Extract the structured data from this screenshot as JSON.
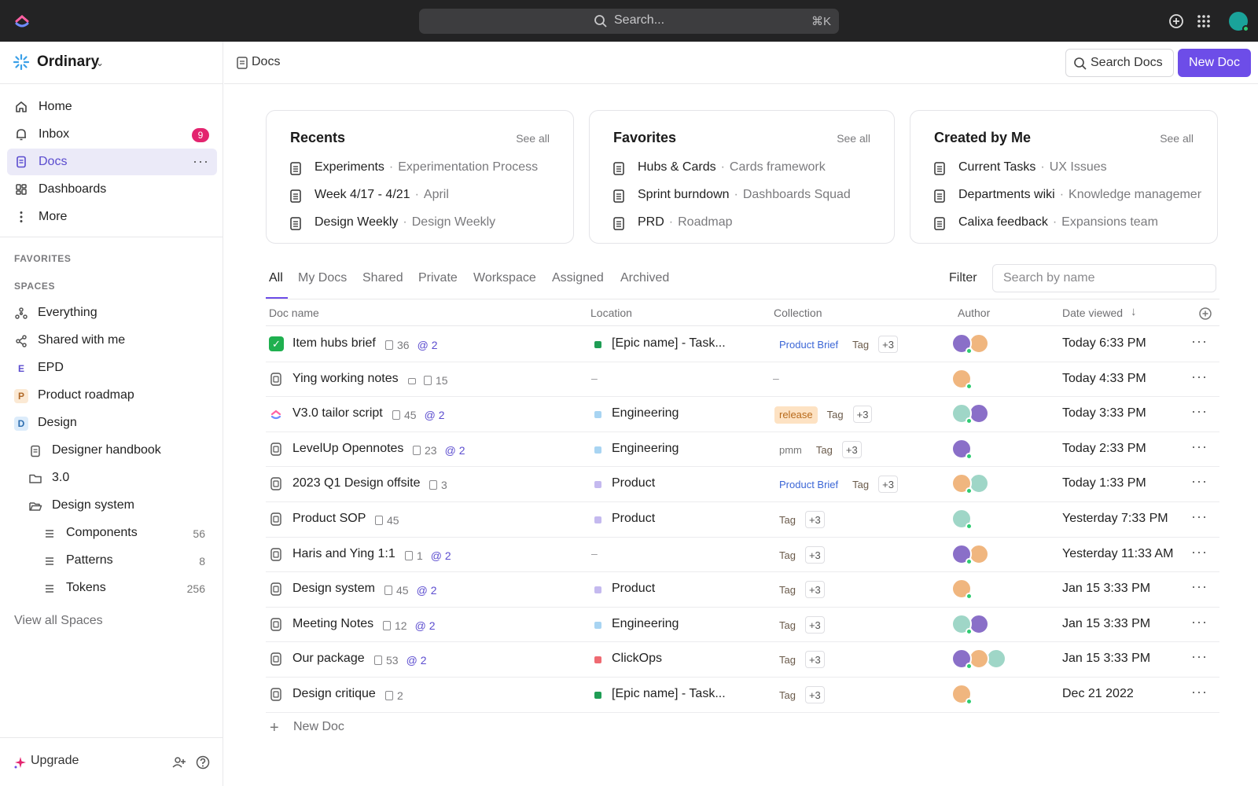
{
  "topbar": {
    "search_placeholder": "Search...",
    "search_shortcut": "⌘K",
    "icons": [
      "clickup-logo-icon",
      "plus-circle-icon",
      "apps-grid-icon",
      "user-avatar"
    ]
  },
  "sidebar": {
    "workspace_name": "Ordinary",
    "nav": [
      {
        "label": "Home",
        "icon": "home-icon"
      },
      {
        "label": "Inbox",
        "icon": "bell-icon",
        "badge": "9"
      },
      {
        "label": "Docs",
        "icon": "docs-icon",
        "active": true
      },
      {
        "label": "Dashboards",
        "icon": "dashboard-icon"
      },
      {
        "label": "More",
        "icon": "more-vertical-icon"
      }
    ],
    "favorites_heading": "FAVORITES",
    "spaces_heading": "SPACES",
    "spaces": [
      {
        "label": "Everything",
        "icon": "everything-icon"
      },
      {
        "label": "Shared with me",
        "icon": "share-icon"
      },
      {
        "label": "EPD",
        "letter": "E"
      },
      {
        "label": "Product roadmap",
        "letter": "P"
      },
      {
        "label": "Design",
        "letter": "D"
      },
      {
        "label": "Designer handbook",
        "icon": "doc-icon"
      },
      {
        "label": "3.0",
        "icon": "folder-icon"
      },
      {
        "label": "Design system",
        "icon": "folder-open-icon"
      },
      {
        "label": "Components",
        "icon": "list-icon",
        "count": "56"
      },
      {
        "label": "Patterns",
        "icon": "list-icon",
        "count": "8"
      },
      {
        "label": "Tokens",
        "icon": "list-icon",
        "count": "256"
      }
    ],
    "view_all": "View all Spaces",
    "upgrade": "Upgrade"
  },
  "header": {
    "breadcrumb": "Docs",
    "search_docs": "Search Docs",
    "new_doc": "New Doc"
  },
  "cards": [
    {
      "title": "Recents",
      "see_all": "See all",
      "items": [
        {
          "name": "Experiments",
          "sub": "Experimentation Process"
        },
        {
          "name": "Week 4/17 - 4/21",
          "sub": "April"
        },
        {
          "name": "Design Weekly",
          "sub": "Design Weekly"
        }
      ]
    },
    {
      "title": "Favorites",
      "see_all": "See all",
      "items": [
        {
          "name": "Hubs & Cards",
          "sub": "Cards framework"
        },
        {
          "name": "Sprint burndown",
          "sub": "Dashboards Squad"
        },
        {
          "name": "PRD",
          "sub": "Roadmap"
        }
      ]
    },
    {
      "title": "Created by Me",
      "see_all": "See all",
      "items": [
        {
          "name": "Current Tasks",
          "sub": "UX Issues"
        },
        {
          "name": "Departments wiki",
          "sub": "Knowledge managemen"
        },
        {
          "name": "Calixa feedback",
          "sub": "Expansions team"
        }
      ]
    }
  ],
  "tabs": [
    "All",
    "My Docs",
    "Shared",
    "Private",
    "Workspace",
    "Assigned",
    "Archived"
  ],
  "filter_label": "Filter",
  "name_search_placeholder": "Search by name",
  "table": {
    "columns": [
      "Doc name",
      "Location",
      "Collection",
      "Author",
      "Date viewed"
    ],
    "rows": [
      {
        "name": "Item hubs brief",
        "pages": "36",
        "shared": "2",
        "location": "[Epic name] - Task...",
        "loc_color": "#1f9d55",
        "collection": [
          {
            "t": "Product Brief",
            "k": "brief"
          },
          {
            "t": "Tag",
            "k": "tag"
          },
          {
            "t": "+3",
            "k": "plus"
          }
        ],
        "date": "Today 6:33 PM",
        "check": true,
        "authors": 2
      },
      {
        "name": "Ying working notes",
        "pages": "15",
        "locked": true,
        "location": "",
        "collection": [],
        "date": "Today 4:33 PM",
        "authors": 1
      },
      {
        "name": "V3.0 tailor script",
        "pages": "45",
        "shared": "2",
        "location": "Engineering",
        "loc_color": "#a8d4f2",
        "collection": [
          {
            "t": "release",
            "k": "release"
          },
          {
            "t": "Tag",
            "k": "tag"
          },
          {
            "t": "+3",
            "k": "plus"
          }
        ],
        "date": "Today 3:33 PM",
        "clickup": true,
        "authors": 2
      },
      {
        "name": "LevelUp Opennotes",
        "pages": "23",
        "shared": "2",
        "location": "Engineering",
        "loc_color": "#a8d4f2",
        "collection": [
          {
            "t": "pmm",
            "k": "pmm"
          },
          {
            "t": "Tag",
            "k": "tag"
          },
          {
            "t": "+3",
            "k": "plus"
          }
        ],
        "date": "Today 2:33 PM",
        "authors": 1
      },
      {
        "name": "2023 Q1 Design offsite",
        "pages": "3",
        "location": "Product",
        "loc_color": "#c4b9ef",
        "collection": [
          {
            "t": "Product Brief",
            "k": "brief"
          },
          {
            "t": "Tag",
            "k": "tag"
          },
          {
            "t": "+3",
            "k": "plus"
          }
        ],
        "date": "Today 1:33 PM",
        "authors": 2
      },
      {
        "name": "Product SOP",
        "pages": "45",
        "location": "Product",
        "loc_color": "#c4b9ef",
        "collection": [
          {
            "t": "Tag",
            "k": "tag"
          },
          {
            "t": "+3",
            "k": "plus"
          }
        ],
        "date": "Yesterday 7:33 PM",
        "authors": 1
      },
      {
        "name": "Haris and Ying 1:1",
        "pages": "1",
        "shared": "2",
        "location": "",
        "collection": [
          {
            "t": "Tag",
            "k": "tag"
          },
          {
            "t": "+3",
            "k": "plus"
          }
        ],
        "date": "Yesterday 11:33 AM",
        "authors": 2
      },
      {
        "name": "Design system",
        "pages": "45",
        "shared": "2",
        "location": "Product",
        "loc_color": "#c4b9ef",
        "collection": [
          {
            "t": "Tag",
            "k": "tag"
          },
          {
            "t": "+3",
            "k": "plus"
          }
        ],
        "date": "Jan 15 3:33 PM",
        "authors": 1
      },
      {
        "name": "Meeting Notes",
        "pages": "12",
        "shared": "2",
        "location": "Engineering",
        "loc_color": "#a8d4f2",
        "collection": [
          {
            "t": "Tag",
            "k": "tag"
          },
          {
            "t": "+3",
            "k": "plus"
          }
        ],
        "date": "Jan 15 3:33 PM",
        "authors": 2
      },
      {
        "name": "Our package",
        "pages": "53",
        "shared": "2",
        "location": "ClickOps",
        "loc_color": "#ef6a72",
        "collection": [
          {
            "t": "Tag",
            "k": "tag"
          },
          {
            "t": "+3",
            "k": "plus"
          }
        ],
        "date": "Jan 15 3:33 PM",
        "authors": 3
      },
      {
        "name": "Design critique",
        "pages": "2",
        "location": "[Epic name] - Task...",
        "loc_color": "#1f9d55",
        "collection": [
          {
            "t": "Tag",
            "k": "tag"
          },
          {
            "t": "+3",
            "k": "plus"
          }
        ],
        "date": "Dec 21 2022",
        "authors": 1
      }
    ],
    "new_doc": "New Doc"
  },
  "colors": {
    "accent": "#6d4de8",
    "badge": "#e3246f",
    "topbar": "#232324"
  }
}
